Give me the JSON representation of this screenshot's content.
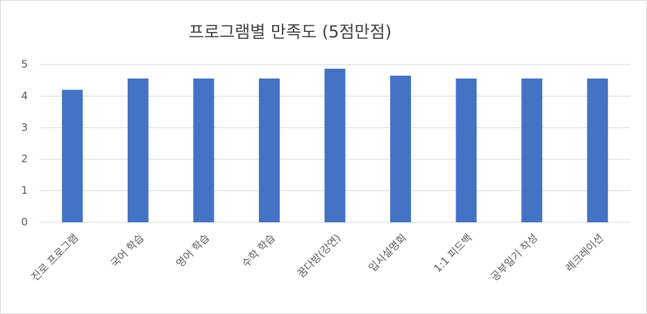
{
  "chart_data": {
    "type": "bar",
    "title": "프로그램별 만족도 (5점만점)",
    "categories": [
      "진로 프로그램",
      "국어 학습",
      "영어 학습",
      "수학 학습",
      "꿈다방(강연)",
      "입시설명회",
      "1:1 피드백",
      "공부일기 작성",
      "레크레이션"
    ],
    "values": [
      4.2,
      4.56,
      4.56,
      4.56,
      4.87,
      4.65,
      4.56,
      4.56,
      4.56
    ],
    "color": "#4472c4",
    "ylim": [
      0,
      5
    ],
    "yticks": [
      0,
      1,
      2,
      3,
      4,
      5
    ],
    "grid": true
  }
}
